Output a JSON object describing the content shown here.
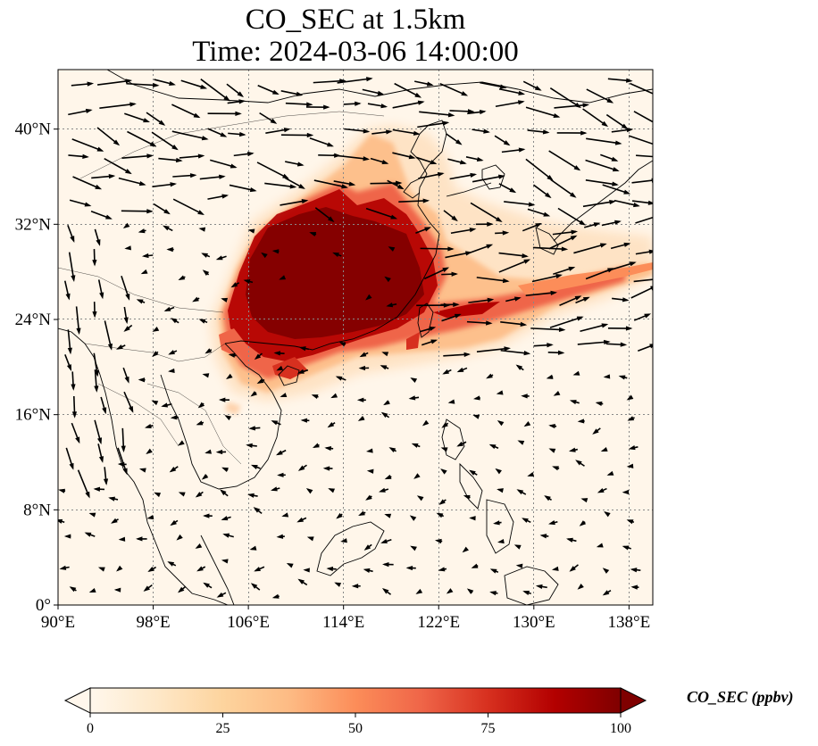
{
  "title": {
    "line1": "CO_SEC at 1.5km",
    "line2": "Time: 2024-03-06 14:00:00"
  },
  "map": {
    "lon_range": [
      90,
      140
    ],
    "lat_range": [
      0,
      40
    ],
    "x_ticks": [
      "90°E",
      "98°E",
      "106°E",
      "114°E",
      "122°E",
      "130°E",
      "138°E"
    ],
    "x_tick_values": [
      90,
      98,
      106,
      114,
      122,
      130,
      138
    ],
    "y_ticks": [
      "0°",
      "8°N",
      "16°N",
      "24°N",
      "32°N",
      "40°N"
    ],
    "y_tick_values": [
      0,
      8,
      16,
      24,
      32,
      40
    ],
    "grid": true,
    "grid_style": "dotted",
    "coastlines": true,
    "wind_vectors": true
  },
  "colorbar": {
    "label": "CO_SEC (ppbv)",
    "ticks": [
      "0",
      "25",
      "50",
      "75",
      "100"
    ],
    "tick_values": [
      0,
      25,
      50,
      75,
      100
    ],
    "range": [
      0,
      100
    ],
    "colormap": "OrRd",
    "extend": "both",
    "colors": [
      "#fff7ec",
      "#fee8c8",
      "#fdd49e",
      "#fdbb84",
      "#fc8d59",
      "#ef6548",
      "#d7301f",
      "#b30000",
      "#7f0000"
    ]
  },
  "colors": {
    "background_field": "#fff6ea",
    "plume_low": "#fdd49e",
    "plume_mid": "#ef6548",
    "plume_high": "#a30000",
    "plume_peak": "#7f0000",
    "coastline": "#000000",
    "grid": "#888888",
    "arrow": "#000000"
  }
}
